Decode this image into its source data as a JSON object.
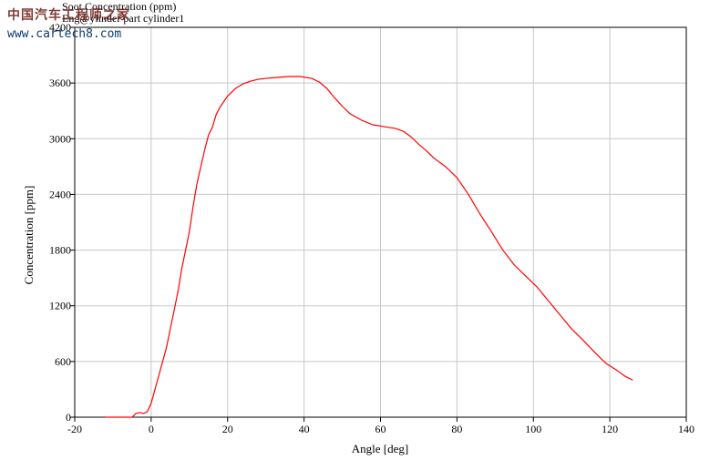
{
  "header": {
    "title_line_1": "Soot Concentration (ppm)",
    "title_line_2": "Eng@ylinder part cylinder1"
  },
  "watermark": {
    "brand_cn": "中国汽车工程师之家",
    "url": "www.cartech8.com"
  },
  "chart_data": {
    "type": "line",
    "title": "Soot Concentration (ppm)",
    "subtitle": "Eng@ylinder part cylinder1",
    "xlabel": "Angle [deg]",
    "ylabel": "Concentration [ppm]",
    "xlim": [
      -20,
      140
    ],
    "ylim": [
      0,
      4200
    ],
    "xticks": [
      -20,
      0,
      20,
      40,
      60,
      80,
      100,
      120,
      140
    ],
    "yticks": [
      0,
      600,
      1200,
      1800,
      2400,
      3000,
      3600,
      4200
    ],
    "grid": true,
    "line_color": "#ff0000",
    "series": [
      {
        "x": [
          -12,
          -5,
          -4,
          -3,
          -2,
          -1,
          0,
          1,
          2,
          3,
          4,
          5,
          6,
          7,
          8,
          9,
          10,
          11,
          12,
          13,
          14,
          15,
          16,
          17,
          18,
          20,
          22,
          24,
          26,
          28,
          30,
          33,
          36,
          39,
          42,
          44,
          46,
          48,
          50,
          52,
          55,
          58,
          61,
          64,
          66,
          68,
          70,
          72,
          74,
          77,
          80,
          83,
          86,
          89,
          92,
          95,
          98,
          101,
          104,
          107,
          110,
          113,
          116,
          119,
          122,
          124,
          126
        ],
        "y": [
          0,
          0,
          40,
          50,
          40,
          60,
          150,
          300,
          450,
          600,
          750,
          950,
          1150,
          1350,
          1600,
          1800,
          2000,
          2280,
          2520,
          2700,
          2880,
          3040,
          3120,
          3260,
          3340,
          3460,
          3540,
          3590,
          3620,
          3640,
          3650,
          3660,
          3670,
          3670,
          3650,
          3610,
          3540,
          3440,
          3350,
          3270,
          3200,
          3150,
          3130,
          3110,
          3080,
          3020,
          2940,
          2870,
          2790,
          2700,
          2580,
          2400,
          2190,
          2000,
          1800,
          1640,
          1520,
          1400,
          1250,
          1100,
          950,
          830,
          700,
          580,
          500,
          440,
          400
        ]
      }
    ]
  }
}
